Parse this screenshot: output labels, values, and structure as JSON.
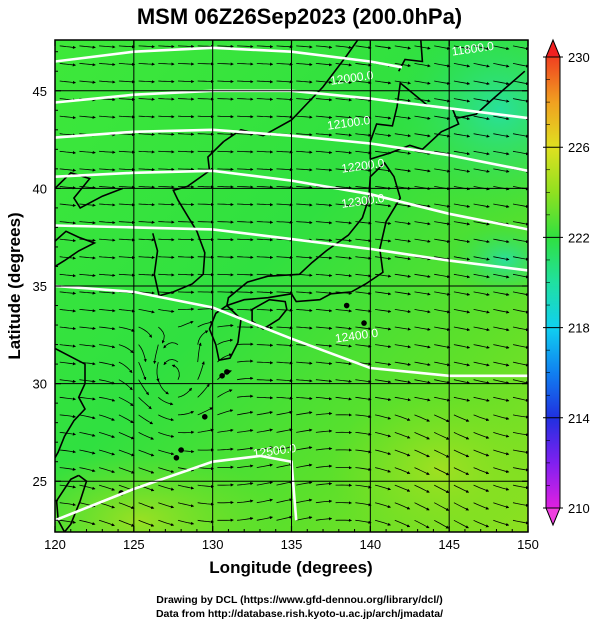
{
  "title": "MSM 06Z26Sep2023 (200.0hPa)",
  "map": {
    "xlabel": "Longitude (degrees)",
    "ylabel": "Latitude  (degrees)",
    "lon_range": [
      120,
      150
    ],
    "lat_range": [
      22.4,
      47.6
    ],
    "lon_ticks": [
      {
        "value": 120,
        "label": "120"
      },
      {
        "value": 125,
        "label": "125"
      },
      {
        "value": 130,
        "label": "130"
      },
      {
        "value": 135,
        "label": "135"
      },
      {
        "value": 140,
        "label": "140"
      },
      {
        "value": 145,
        "label": "145"
      },
      {
        "value": 150,
        "label": "150"
      }
    ],
    "lat_ticks": [
      {
        "value": 25,
        "label": "25"
      },
      {
        "value": 30,
        "label": "30"
      },
      {
        "value": 35,
        "label": "35"
      },
      {
        "value": 40,
        "label": "40"
      },
      {
        "value": 45,
        "label": "45"
      }
    ],
    "contours": [
      {
        "label": "11800.0"
      },
      {
        "label": "12000.0"
      },
      {
        "label": "12100.0"
      },
      {
        "label": "12200.0"
      },
      {
        "label": "12300.0"
      },
      {
        "label": "12400.0"
      },
      {
        "label": "12500.0"
      }
    ]
  },
  "colorbar": {
    "min": 210,
    "max": 230,
    "ticks": [
      {
        "value": 230,
        "label": "230"
      },
      {
        "value": 226,
        "label": "226"
      },
      {
        "value": 222,
        "label": "222"
      },
      {
        "value": 218,
        "label": "218"
      },
      {
        "value": 214,
        "label": "214"
      },
      {
        "value": 210,
        "label": "210"
      }
    ],
    "colors": [
      "#e020e0",
      "#8020f0",
      "#2030e0",
      "#1080f0",
      "#10d0f0",
      "#20e0a0",
      "#30e040",
      "#90e020",
      "#e0e020",
      "#f0a020",
      "#f04020"
    ]
  },
  "credits": {
    "line1": "Drawing by DCL (https://www.gfd-dennou.org/library/dcl/)",
    "line2": "Data from http://database.rish.kyoto-u.ac.jp/arch/jmadata/"
  }
}
